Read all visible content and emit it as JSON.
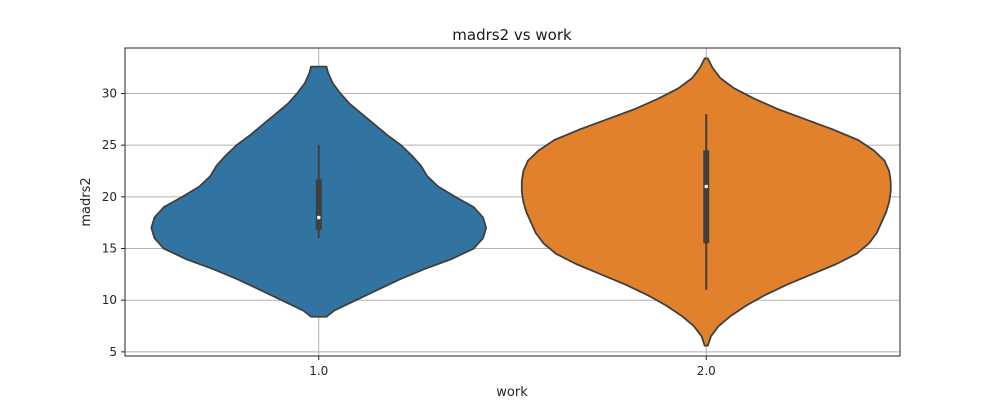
{
  "chart_data": {
    "type": "violin",
    "title": "madrs2 vs work",
    "xlabel": "work",
    "ylabel": "madrs2",
    "categories": [
      "1.0",
      "2.0"
    ],
    "ylim": [
      4.6,
      34.4
    ],
    "yticks": [
      5,
      10,
      15,
      20,
      25,
      30
    ],
    "grid": true,
    "series": [
      {
        "category": "1.0",
        "color": "#3274a1",
        "min": 8.4,
        "max": 32.6,
        "median": 18.0,
        "q1": 16.8,
        "q3": 21.7,
        "whisker_low": 16.0,
        "whisker_high": 25.0,
        "density": [
          [
            8.4,
            0.05
          ],
          [
            9.0,
            0.1
          ],
          [
            10.0,
            0.24
          ],
          [
            11.0,
            0.38
          ],
          [
            12.0,
            0.52
          ],
          [
            13.0,
            0.68
          ],
          [
            14.0,
            0.86
          ],
          [
            15.0,
            1.0
          ],
          [
            16.0,
            1.06
          ],
          [
            17.0,
            1.08
          ],
          [
            18.0,
            1.06
          ],
          [
            19.0,
            1.0
          ],
          [
            20.0,
            0.88
          ],
          [
            21.0,
            0.77
          ],
          [
            22.0,
            0.7
          ],
          [
            23.0,
            0.66
          ],
          [
            24.0,
            0.6
          ],
          [
            25.0,
            0.53
          ],
          [
            26.0,
            0.44
          ],
          [
            27.0,
            0.36
          ],
          [
            28.0,
            0.28
          ],
          [
            29.0,
            0.2
          ],
          [
            30.0,
            0.14
          ],
          [
            31.0,
            0.09
          ],
          [
            32.0,
            0.06
          ],
          [
            32.6,
            0.05
          ]
        ]
      },
      {
        "category": "2.0",
        "color": "#e1812c",
        "min": 5.6,
        "max": 33.4,
        "median": 21.0,
        "q1": 15.5,
        "q3": 24.5,
        "whisker_low": 11.0,
        "whisker_high": 28.0,
        "density": [
          [
            5.6,
            0.01
          ],
          [
            6.5,
            0.03
          ],
          [
            7.5,
            0.08
          ],
          [
            8.5,
            0.16
          ],
          [
            9.5,
            0.26
          ],
          [
            10.5,
            0.38
          ],
          [
            11.5,
            0.52
          ],
          [
            12.5,
            0.68
          ],
          [
            13.5,
            0.84
          ],
          [
            14.5,
            0.97
          ],
          [
            15.5,
            1.05
          ],
          [
            16.5,
            1.1
          ],
          [
            17.5,
            1.13
          ],
          [
            18.5,
            1.16
          ],
          [
            19.5,
            1.18
          ],
          [
            20.5,
            1.19
          ],
          [
            21.5,
            1.19
          ],
          [
            22.5,
            1.18
          ],
          [
            23.5,
            1.15
          ],
          [
            24.5,
            1.08
          ],
          [
            25.5,
            0.98
          ],
          [
            26.5,
            0.82
          ],
          [
            27.5,
            0.64
          ],
          [
            28.5,
            0.46
          ],
          [
            29.5,
            0.31
          ],
          [
            30.5,
            0.18
          ],
          [
            31.5,
            0.09
          ],
          [
            32.5,
            0.04
          ],
          [
            33.4,
            0.01
          ]
        ]
      }
    ]
  }
}
